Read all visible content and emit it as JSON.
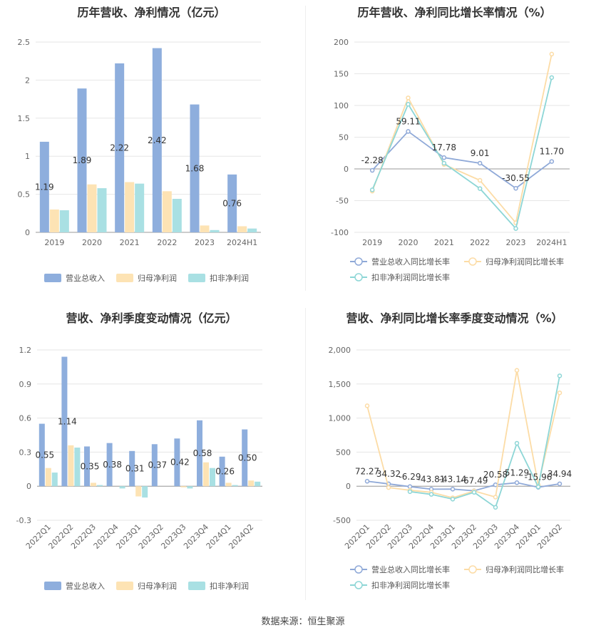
{
  "colors": {
    "revenue": "#8eaedd",
    "parent_profit": "#fde3b4",
    "non_recurring": "#a9e0e3",
    "grid": "#e6e6e6",
    "axis": "#666666"
  },
  "source": "数据来源：恒生聚源",
  "chart_data": [
    {
      "id": "annual-values",
      "type": "bar",
      "title": "历年营收、净利情况（亿元）",
      "categories": [
        "2019",
        "2020",
        "2021",
        "2022",
        "2023",
        "2024H1"
      ],
      "ylim": [
        0,
        2.5
      ],
      "yticks": [
        0,
        0.5,
        1,
        1.5,
        2,
        2.5
      ],
      "ytick_labels": [
        "0",
        "0.5",
        "1",
        "1.5",
        "2",
        "2.5"
      ],
      "series": [
        {
          "name": "营业总收入",
          "values": [
            1.19,
            1.89,
            2.22,
            2.42,
            1.68,
            0.76
          ],
          "labels": [
            "1.19",
            "1.89",
            "2.22",
            "2.42",
            "1.68",
            "0.76"
          ]
        },
        {
          "name": "归母净利润",
          "values": [
            0.3,
            0.63,
            0.66,
            0.54,
            0.09,
            0.08
          ]
        },
        {
          "name": "扣非净利润",
          "values": [
            0.29,
            0.58,
            0.64,
            0.44,
            0.03,
            0.05
          ]
        }
      ],
      "legend": "bottom"
    },
    {
      "id": "annual-growth",
      "type": "line",
      "title": "历年营收、净利同比增长率情况（%）",
      "categories": [
        "2019",
        "2020",
        "2021",
        "2022",
        "2023",
        "2024H1"
      ],
      "ylim": [
        -100,
        200
      ],
      "yticks": [
        -100,
        -50,
        0,
        50,
        100,
        150,
        200
      ],
      "ytick_labels": [
        "-100",
        "-50",
        "0",
        "50",
        "100",
        "150",
        "200"
      ],
      "series": [
        {
          "name": "营业总收入同比增长率",
          "values": [
            -2.28,
            59.11,
            17.78,
            9.01,
            -30.55,
            11.7
          ],
          "labels": [
            "-2.28",
            "59.11",
            "17.78",
            "9.01",
            "-30.55",
            "11.70"
          ]
        },
        {
          "name": "归母净利润同比增长率",
          "values": [
            -35,
            112,
            7,
            -18,
            -85,
            181
          ]
        },
        {
          "name": "扣非净利润同比增长率",
          "values": [
            -33,
            102,
            9,
            -31,
            -94,
            144
          ]
        }
      ],
      "legend": "bottom"
    },
    {
      "id": "quarterly-values",
      "type": "bar",
      "title": "营收、净利季度变动情况（亿元）",
      "categories": [
        "2022Q1",
        "2022Q2",
        "2022Q3",
        "2022Q4",
        "2023Q1",
        "2023Q2",
        "2023Q3",
        "2023Q4",
        "2024Q1",
        "2024Q2"
      ],
      "ylim": [
        -0.3,
        1.2
      ],
      "yticks": [
        -0.3,
        0,
        0.3,
        0.6,
        0.9,
        1.2
      ],
      "ytick_labels": [
        "-0.3",
        "0",
        "0.3",
        "0.6",
        "0.9",
        "1.2"
      ],
      "series": [
        {
          "name": "营业总收入",
          "values": [
            0.55,
            1.14,
            0.35,
            0.38,
            0.31,
            0.37,
            0.42,
            0.58,
            0.26,
            0.5
          ],
          "labels": [
            "0.55",
            "1.14",
            "0.35",
            "0.38",
            "0.31",
            "0.37",
            "0.42",
            "0.58",
            "0.26",
            "0.50"
          ]
        },
        {
          "name": "归母净利润",
          "values": [
            0.16,
            0.36,
            0.03,
            0.0,
            -0.09,
            0.0,
            -0.01,
            0.21,
            0.03,
            0.05
          ]
        },
        {
          "name": "扣非净利润",
          "values": [
            0.12,
            0.34,
            0.01,
            -0.02,
            -0.1,
            0.0,
            -0.02,
            0.16,
            0.01,
            0.04
          ]
        }
      ],
      "legend": "bottom"
    },
    {
      "id": "quarterly-growth",
      "type": "line",
      "title": "营收、净利同比增长率季度变动情况（%）",
      "categories": [
        "2022Q1",
        "2022Q2",
        "2022Q3",
        "2022Q4",
        "2023Q1",
        "2023Q2",
        "2023Q3",
        "2023Q4",
        "2024Q1",
        "2024Q2"
      ],
      "ylim": [
        -500,
        2000
      ],
      "yticks": [
        -500,
        0,
        500,
        1000,
        1500,
        2000
      ],
      "ytick_labels": [
        "-500",
        "0",
        "500",
        "1,000",
        "1,500",
        "2,000"
      ],
      "series": [
        {
          "name": "营业总收入同比增长率",
          "values": [
            72.27,
            34.32,
            -6.29,
            -43.81,
            -43.14,
            -67.49,
            20.58,
            51.29,
            -15.96,
            34.94
          ],
          "labels": [
            "72.27",
            "34.32",
            "-6.29",
            "-43.81",
            "-43.14",
            "-67.49",
            "20.58",
            "51.29",
            "-15.96",
            "34.94"
          ]
        },
        {
          "name": "归母净利润同比增长率",
          "values": [
            1180,
            -20,
            -60,
            -90,
            -170,
            -70,
            -160,
            1700,
            20,
            1370
          ]
        },
        {
          "name": "扣非净利润同比增长率",
          "values": [
            null,
            null,
            -80,
            -120,
            -190,
            -90,
            -310,
            630,
            -10,
            1620
          ]
        }
      ],
      "legend": "bottom"
    }
  ]
}
